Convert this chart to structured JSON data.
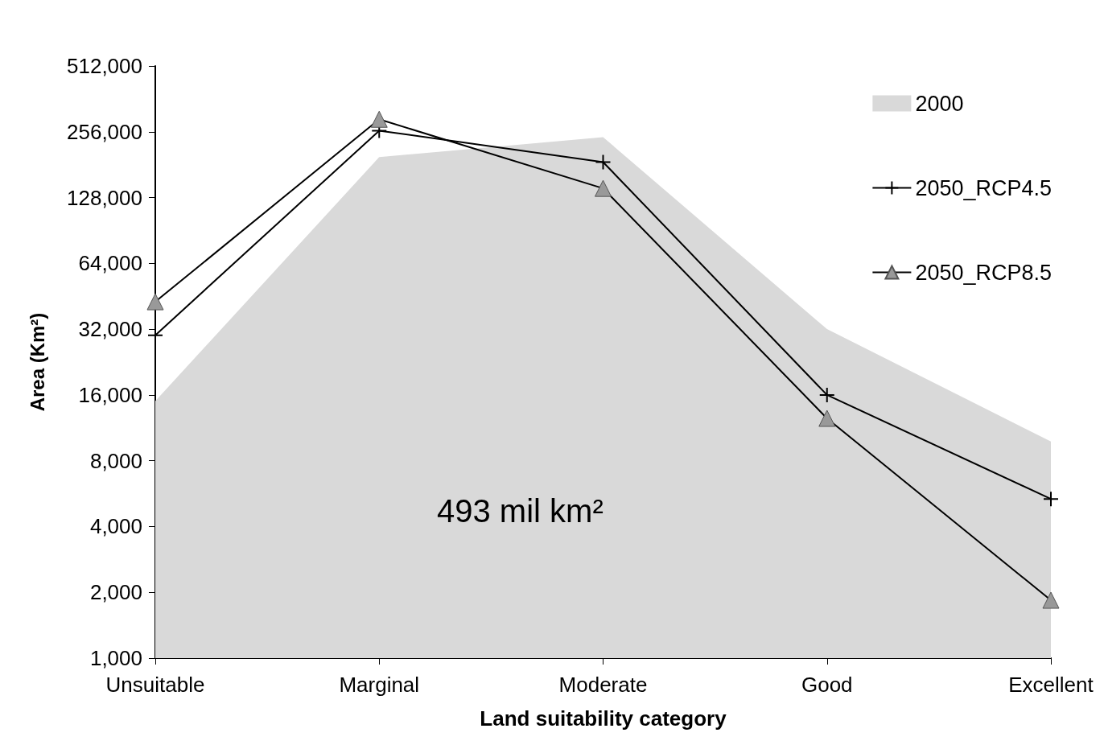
{
  "chart_data": {
    "type": "line",
    "xlabel": "Land suitability category",
    "ylabel": "Area (Km²)",
    "categories": [
      "Unsuitable",
      "Marginal",
      "Moderate",
      "Good",
      "Excellent"
    ],
    "series": [
      {
        "name": "2000",
        "type": "area",
        "color": "#d9d9d9",
        "marker": "none",
        "values": [
          15000,
          196000,
          242000,
          32000,
          9800
        ]
      },
      {
        "name": "2050_RCP4.5",
        "color": "#000000",
        "marker": "cross",
        "values": [
          30000,
          259000,
          186000,
          16000,
          5350
        ]
      },
      {
        "name": "2050_RCP8.5",
        "color": "#000000",
        "marker": "triangle",
        "values": [
          42700,
          292000,
          141000,
          12500,
          1840
        ]
      }
    ],
    "log": "y",
    "ylim": [
      1000,
      512000
    ],
    "yticks": [
      {
        "value": 1000,
        "label": "1,000"
      },
      {
        "value": 2000,
        "label": "2,000"
      },
      {
        "value": 4000,
        "label": "4,000"
      },
      {
        "value": 8000,
        "label": "8,000"
      },
      {
        "value": 16000,
        "label": "16,000"
      },
      {
        "value": 32000,
        "label": "32,000"
      },
      {
        "value": 64000,
        "label": "64,000"
      },
      {
        "value": 128000,
        "label": "128,000"
      },
      {
        "value": 256000,
        "label": "256,000"
      },
      {
        "value": 512000,
        "label": "512,000"
      }
    ],
    "grid": false,
    "legend": "top right",
    "annotations": [
      "493 mil km²"
    ]
  }
}
